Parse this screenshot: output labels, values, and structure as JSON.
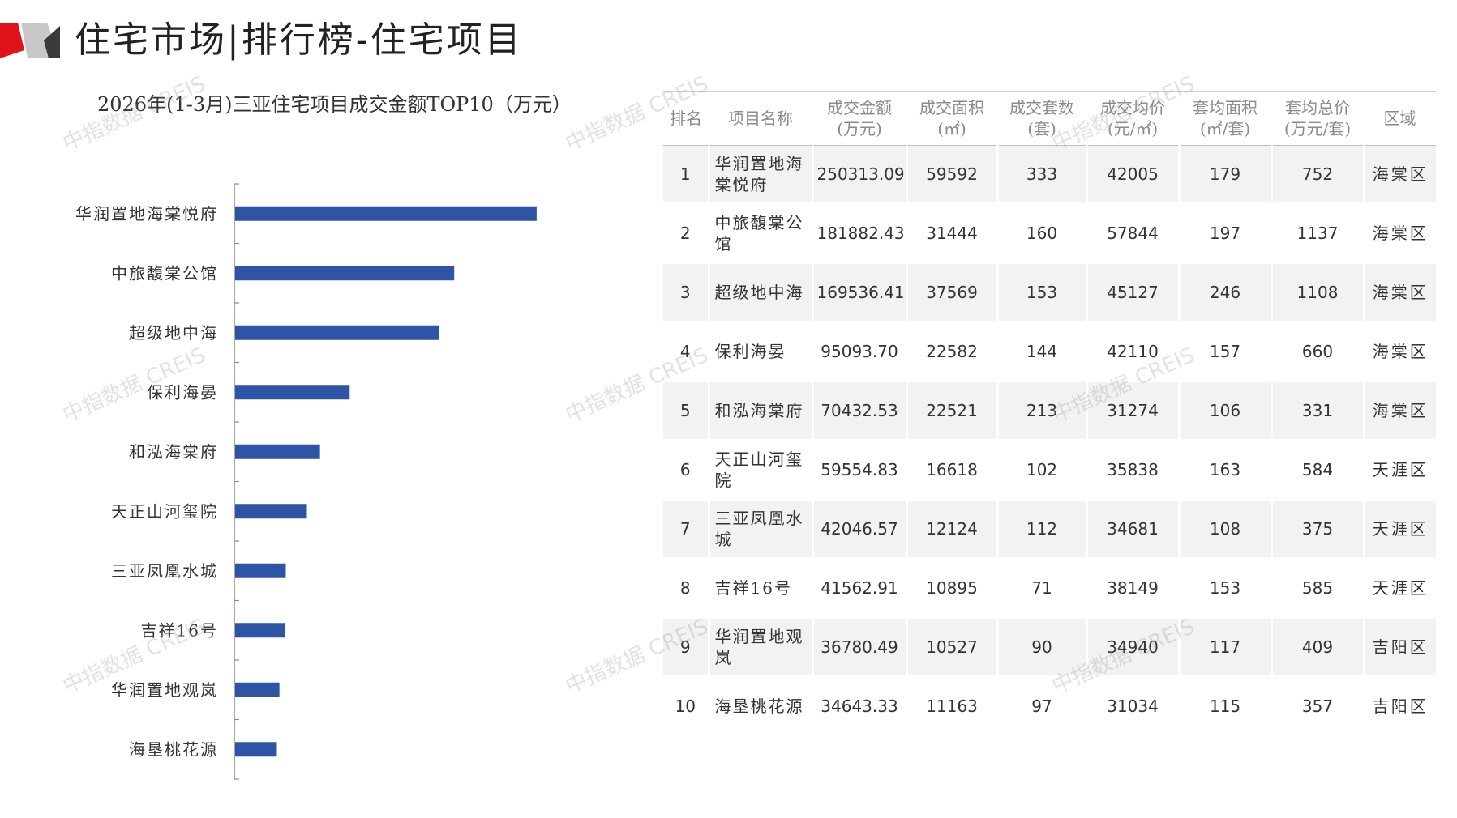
{
  "header": {
    "title": "住宅市场|排行榜-住宅项目",
    "logo_colors": {
      "red": "#e0131b",
      "gray": "#c8c8c8",
      "dark": "#3a3a3a"
    }
  },
  "watermark_text": "中指数据 CREIS",
  "colors": {
    "bar": "#2e55a5",
    "axis": "#8c8c8c",
    "row_alt": "#f2f2f2",
    "header_text": "#8a8a8a"
  },
  "chart_data": {
    "type": "bar",
    "orientation": "horizontal",
    "title": "2026年(1-3月)三亚住宅项目成交金额TOP10（万元）",
    "categories": [
      "华润置地海棠悦府",
      "中旅馥棠公馆",
      "超级地中海",
      "保利海晏",
      "和泓海棠府",
      "天正山河玺院",
      "三亚凤凰水城",
      "吉祥16号",
      "华润置地观岚",
      "海垦桃花源"
    ],
    "values": [
      250313.09,
      181882.43,
      169536.41,
      95093.7,
      70432.53,
      59554.83,
      42046.57,
      41562.91,
      36780.49,
      34643.33
    ],
    "xlim": [
      0,
      350000
    ],
    "grid": false,
    "legend": "none"
  },
  "table": {
    "headers": [
      {
        "line1": "排名",
        "line2": ""
      },
      {
        "line1": "项目名称",
        "line2": ""
      },
      {
        "line1": "成交金额",
        "line2": "(万元)"
      },
      {
        "line1": "成交面积",
        "line2": "(㎡)"
      },
      {
        "line1": "成交套数",
        "line2": "(套)"
      },
      {
        "line1": "成交均价",
        "line2": "(元/㎡)"
      },
      {
        "line1": "套均面积",
        "line2": "(㎡/套)"
      },
      {
        "line1": "套均总价",
        "line2": "(万元/套)"
      },
      {
        "line1": "区域",
        "line2": ""
      }
    ],
    "rows": [
      {
        "rank": "1",
        "name": "华润置地海棠悦府",
        "amount": "250313.09",
        "area": "59592",
        "units": "333",
        "avg_price": "42005",
        "avg_area": "179",
        "avg_total": "752",
        "region": "海棠区"
      },
      {
        "rank": "2",
        "name": "中旅馥棠公馆",
        "amount": "181882.43",
        "area": "31444",
        "units": "160",
        "avg_price": "57844",
        "avg_area": "197",
        "avg_total": "1137",
        "region": "海棠区"
      },
      {
        "rank": "3",
        "name": "超级地中海",
        "amount": "169536.41",
        "area": "37569",
        "units": "153",
        "avg_price": "45127",
        "avg_area": "246",
        "avg_total": "1108",
        "region": "海棠区"
      },
      {
        "rank": "4",
        "name": "保利海晏",
        "amount": "95093.70",
        "area": "22582",
        "units": "144",
        "avg_price": "42110",
        "avg_area": "157",
        "avg_total": "660",
        "region": "海棠区"
      },
      {
        "rank": "5",
        "name": "和泓海棠府",
        "amount": "70432.53",
        "area": "22521",
        "units": "213",
        "avg_price": "31274",
        "avg_area": "106",
        "avg_total": "331",
        "region": "海棠区"
      },
      {
        "rank": "6",
        "name": "天正山河玺院",
        "amount": "59554.83",
        "area": "16618",
        "units": "102",
        "avg_price": "35838",
        "avg_area": "163",
        "avg_total": "584",
        "region": "天涯区"
      },
      {
        "rank": "7",
        "name": "三亚凤凰水城",
        "amount": "42046.57",
        "area": "12124",
        "units": "112",
        "avg_price": "34681",
        "avg_area": "108",
        "avg_total": "375",
        "region": "天涯区"
      },
      {
        "rank": "8",
        "name": "吉祥16号",
        "amount": "41562.91",
        "area": "10895",
        "units": "71",
        "avg_price": "38149",
        "avg_area": "153",
        "avg_total": "585",
        "region": "天涯区"
      },
      {
        "rank": "9",
        "name": "华润置地观岚",
        "amount": "36780.49",
        "area": "10527",
        "units": "90",
        "avg_price": "34940",
        "avg_area": "117",
        "avg_total": "409",
        "region": "吉阳区"
      },
      {
        "rank": "10",
        "name": "海垦桃花源",
        "amount": "34643.33",
        "area": "11163",
        "units": "97",
        "avg_price": "31034",
        "avg_area": "115",
        "avg_total": "357",
        "region": "吉阳区"
      }
    ]
  }
}
